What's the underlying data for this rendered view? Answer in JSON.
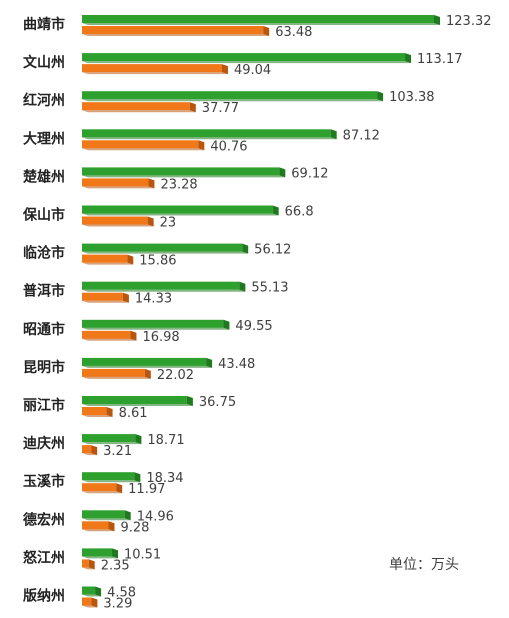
{
  "chart_data": {
    "type": "bar",
    "orientation": "horizontal",
    "categories": [
      "曲靖市",
      "文山州",
      "红河州",
      "大理州",
      "楚雄州",
      "保山市",
      "临沧市",
      "普洱市",
      "昭通市",
      "昆明市",
      "丽江市",
      "迪庆州",
      "玉溪市",
      "德宏州",
      "怒江州",
      "版纳州"
    ],
    "series": [
      {
        "color": "#2ea02e",
        "values": [
          123.32,
          113.17,
          103.38,
          87.12,
          69.12,
          66.8,
          56.12,
          55.13,
          49.55,
          43.48,
          36.75,
          18.71,
          18.34,
          14.96,
          10.51,
          4.58
        ],
        "labels": [
          "123.32",
          "113.17",
          "103.38",
          "87.12",
          "69.12",
          "66.8",
          "56.12",
          "55.13",
          "49.55",
          "43.48",
          "36.75",
          "18.71",
          "18.34",
          "14.96",
          "10.51",
          "4.58"
        ]
      },
      {
        "color": "#f07818",
        "values": [
          63.48,
          49.04,
          37.77,
          40.76,
          23.28,
          23,
          15.86,
          14.33,
          16.98,
          22.02,
          8.61,
          3.21,
          11.97,
          9.28,
          2.35,
          3.29
        ],
        "labels": [
          "63.48",
          "49.04",
          "37.77",
          "40.76",
          "23.28",
          "23",
          "15.86",
          "14.33",
          "16.98",
          "22.02",
          "8.61",
          "3.21",
          "11.97",
          "9.28",
          "2.35",
          "3.29"
        ]
      }
    ],
    "unit_label": "单位：万头",
    "xlim": [
      0,
      123.32
    ],
    "grid": false,
    "legend": "none"
  }
}
